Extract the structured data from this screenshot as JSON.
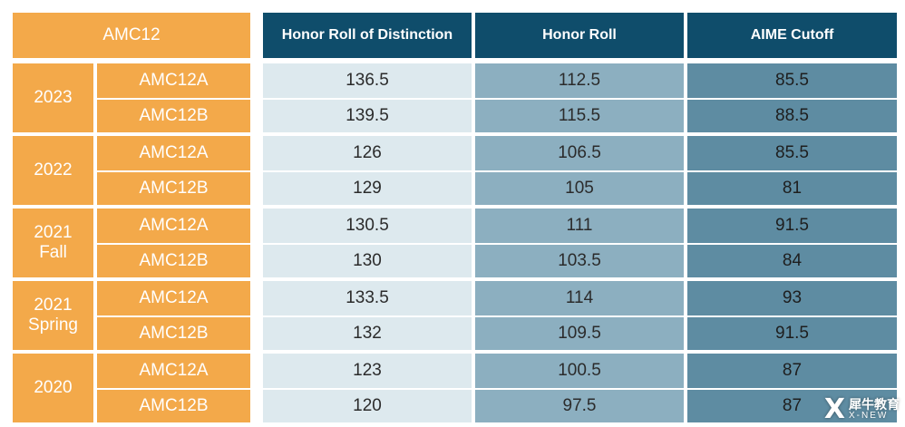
{
  "header": {
    "amc12": "AMC12",
    "honor_roll_distinction": "Honor Roll of Distinction",
    "honor_roll": "Honor Roll",
    "aime_cutoff": "AIME Cutoff"
  },
  "rows": [
    {
      "year": "2023",
      "exam": "AMC12A",
      "distinction": "136.5",
      "honor": "112.5",
      "aime": "85.5"
    },
    {
      "year": "2023",
      "exam": "AMC12B",
      "distinction": "139.5",
      "honor": "115.5",
      "aime": "88.5"
    },
    {
      "year": "2022",
      "exam": "AMC12A",
      "distinction": "126",
      "honor": "106.5",
      "aime": "85.5"
    },
    {
      "year": "2022",
      "exam": "AMC12B",
      "distinction": "129",
      "honor": "105",
      "aime": "81"
    },
    {
      "year": "2021\nFall",
      "exam": "AMC12A",
      "distinction": "130.5",
      "honor": "111",
      "aime": "91.5"
    },
    {
      "year": "2021\nFall",
      "exam": "AMC12B",
      "distinction": "130",
      "honor": "103.5",
      "aime": "84"
    },
    {
      "year": "2021\nSpring",
      "exam": "AMC12A",
      "distinction": "133.5",
      "honor": "114",
      "aime": "93"
    },
    {
      "year": "2021\nSpring",
      "exam": "AMC12B",
      "distinction": "132",
      "honor": "109.5",
      "aime": "91.5"
    },
    {
      "year": "2020",
      "exam": "AMC12A",
      "distinction": "123",
      "honor": "100.5",
      "aime": "87"
    },
    {
      "year": "2020",
      "exam": "AMC12B",
      "distinction": "120",
      "honor": "97.5",
      "aime": "87"
    }
  ],
  "watermark": {
    "mark": "X",
    "cn": "犀牛教育",
    "en": "X-NEW"
  }
}
